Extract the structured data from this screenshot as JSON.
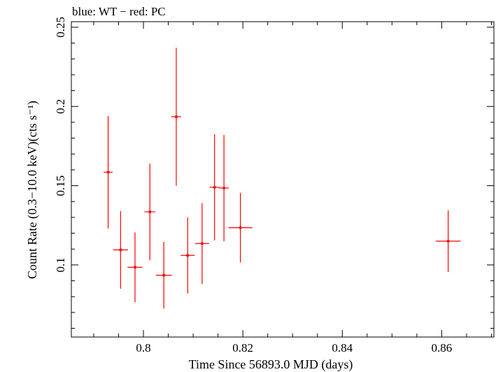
{
  "chart_data": {
    "type": "scatter",
    "title": "blue: WT − red: PC",
    "xlabel": "Time Since 56893.0 MJD (days)",
    "ylabel": "Count Rate (0.3−10.0 keV)(cts s⁻¹)",
    "xlim": [
      0.7855,
      0.8705
    ],
    "ylim": [
      0.0545,
      0.2535
    ],
    "x_ticks": [
      0.8,
      0.82,
      0.84,
      0.86
    ],
    "x_tick_labels": [
      "0.8",
      "0.82",
      "0.84",
      "0.86"
    ],
    "y_ticks": [
      0.1,
      0.15,
      0.2,
      0.25
    ],
    "y_tick_labels": [
      "0.1",
      "0.15",
      "0.2",
      "0.25"
    ],
    "grid": false,
    "series": [
      {
        "name": "PC",
        "color": "#ff0000",
        "points": [
          {
            "x": 0.7929,
            "xerr": 0.0009,
            "y": 0.1585,
            "yerr_lo": 0.0355,
            "yerr_hi": 0.0355
          },
          {
            "x": 0.7954,
            "xerr": 0.0015,
            "y": 0.1095,
            "yerr_lo": 0.0245,
            "yerr_hi": 0.0245
          },
          {
            "x": 0.7983,
            "xerr": 0.0015,
            "y": 0.0985,
            "yerr_lo": 0.022,
            "yerr_hi": 0.022
          },
          {
            "x": 0.8013,
            "xerr": 0.0011,
            "y": 0.1335,
            "yerr_lo": 0.0305,
            "yerr_hi": 0.0305
          },
          {
            "x": 0.8041,
            "xerr": 0.0016,
            "y": 0.0935,
            "yerr_lo": 0.021,
            "yerr_hi": 0.021
          },
          {
            "x": 0.8066,
            "xerr": 0.001,
            "y": 0.1935,
            "yerr_lo": 0.0435,
            "yerr_hi": 0.0435
          },
          {
            "x": 0.8089,
            "xerr": 0.0014,
            "y": 0.106,
            "yerr_lo": 0.024,
            "yerr_hi": 0.024
          },
          {
            "x": 0.8118,
            "xerr": 0.0014,
            "y": 0.1135,
            "yerr_lo": 0.0255,
            "yerr_hi": 0.0255
          },
          {
            "x": 0.8143,
            "xerr": 0.001,
            "y": 0.149,
            "yerr_lo": 0.0335,
            "yerr_hi": 0.0335
          },
          {
            "x": 0.8162,
            "xerr": 0.001,
            "y": 0.1485,
            "yerr_lo": 0.0335,
            "yerr_hi": 0.0335
          },
          {
            "x": 0.8195,
            "xerr": 0.0024,
            "y": 0.1235,
            "yerr_lo": 0.022,
            "yerr_hi": 0.022
          },
          {
            "x": 0.8613,
            "xerr": 0.0025,
            "y": 0.115,
            "yerr_lo": 0.0195,
            "yerr_hi": 0.0195
          }
        ]
      }
    ]
  }
}
